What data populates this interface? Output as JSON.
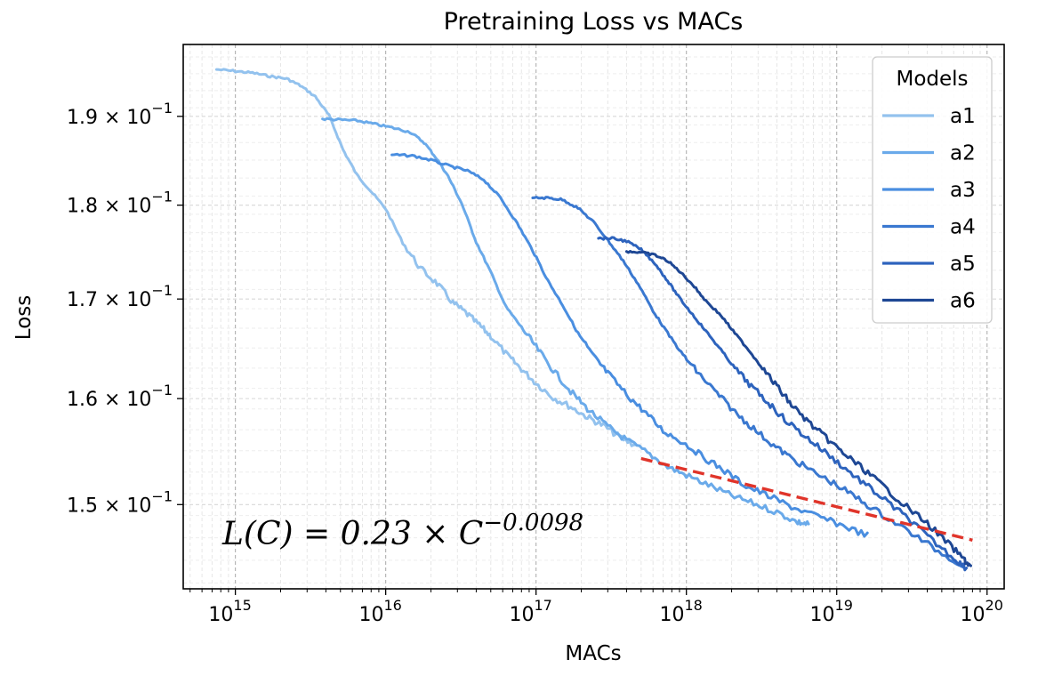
{
  "chart_data": {
    "type": "line",
    "title": "Pretraining Loss vs MACs",
    "xlabel": "MACs",
    "ylabel": "Loss",
    "x_scale": "log",
    "y_scale": "log",
    "xlim": [
      450000000000000.0,
      1.3e+20
    ],
    "ylim": [
      0.1425,
      0.1985
    ],
    "x_ticks": [
      {
        "value": 1000000000000000.0,
        "base": "10",
        "exp": "15"
      },
      {
        "value": 1e+16,
        "base": "10",
        "exp": "16"
      },
      {
        "value": 1e+17,
        "base": "10",
        "exp": "17"
      },
      {
        "value": 1e+18,
        "base": "10",
        "exp": "18"
      },
      {
        "value": 1e+19,
        "base": "10",
        "exp": "19"
      },
      {
        "value": 1e+20,
        "base": "10",
        "exp": "20"
      }
    ],
    "y_ticks": [
      {
        "value": 0.15,
        "label": "1.5 × 10",
        "exp": "−1"
      },
      {
        "value": 0.16,
        "label": "1.6 × 10",
        "exp": "−1"
      },
      {
        "value": 0.17,
        "label": "1.7 × 10",
        "exp": "−1"
      },
      {
        "value": 0.18,
        "label": "1.8 × 10",
        "exp": "−1"
      },
      {
        "value": 0.19,
        "label": "1.9 × 10",
        "exp": "−1"
      }
    ],
    "grid": true,
    "legend": {
      "title": "Models",
      "placement": "top-right"
    },
    "series": [
      {
        "name": "a1",
        "color": "#93c2ee",
        "points": [
          [
            750000000000000.0,
            0.1955
          ],
          [
            1000000000000000.0,
            0.1953
          ],
          [
            1300000000000000.0,
            0.1951
          ],
          [
            1700000000000000.0,
            0.1947
          ],
          [
            2200000000000000.0,
            0.1944
          ],
          [
            2700000000000000.0,
            0.1936
          ],
          [
            3400000000000000.0,
            0.1923
          ],
          [
            4200000000000000.0,
            0.1901
          ],
          [
            5200000000000000.0,
            0.1862
          ],
          [
            6400000000000000.0,
            0.1834
          ],
          [
            8000000000000000.0,
            0.1815
          ],
          [
            1e+16,
            0.1796
          ],
          [
            1.3e+16,
            0.1759
          ],
          [
            1.7e+16,
            0.1732
          ],
          [
            2.2e+16,
            0.1716
          ],
          [
            2.8e+16,
            0.1696
          ],
          [
            3.4e+16,
            0.1686
          ],
          [
            4.2e+16,
            0.1673
          ],
          [
            5e+16,
            0.1662
          ],
          [
            6.5e+16,
            0.1642
          ],
          [
            8e+16,
            0.1629
          ],
          [
            1e+17,
            0.1615
          ],
          [
            1.3e+17,
            0.1601
          ],
          [
            1.7e+17,
            0.1592
          ],
          [
            2.2e+17,
            0.1582
          ],
          [
            2.8e+17,
            0.1574
          ],
          [
            3.6e+17,
            0.1563
          ],
          [
            4.6e+17,
            0.1555
          ]
        ]
      },
      {
        "name": "a2",
        "color": "#6aaaea",
        "points": [
          [
            3800000000000000.0,
            0.1897
          ],
          [
            5000000000000000.0,
            0.1896
          ],
          [
            6500000000000000.0,
            0.1895
          ],
          [
            8500000000000000.0,
            0.1891
          ],
          [
            1.1e+16,
            0.1887
          ],
          [
            1.45e+16,
            0.1882
          ],
          [
            1.8e+16,
            0.187
          ],
          [
            2.2e+16,
            0.1851
          ],
          [
            2.6e+16,
            0.1832
          ],
          [
            3.2e+16,
            0.1802
          ],
          [
            4e+16,
            0.176
          ],
          [
            5e+16,
            0.1728
          ],
          [
            6.3e+16,
            0.1692
          ],
          [
            8e+16,
            0.1671
          ],
          [
            1e+17,
            0.1651
          ],
          [
            1.3e+17,
            0.1628
          ],
          [
            1.7e+17,
            0.1607
          ],
          [
            2.2e+17,
            0.159
          ],
          [
            3e+17,
            0.1573
          ],
          [
            4e+17,
            0.156
          ],
          [
            5.5e+17,
            0.1548
          ],
          [
            7.5e+17,
            0.1535
          ],
          [
            1e+18,
            0.1527
          ],
          [
            1.4e+18,
            0.1518
          ],
          [
            2e+18,
            0.1508
          ],
          [
            2.8e+18,
            0.1501
          ],
          [
            4e+18,
            0.1493
          ],
          [
            5.5e+18,
            0.1484
          ],
          [
            6.5e+18,
            0.1482
          ]
        ]
      },
      {
        "name": "a3",
        "color": "#4a8ee0",
        "points": [
          [
            1.1e+16,
            0.1856
          ],
          [
            1.5e+16,
            0.1855
          ],
          [
            2e+16,
            0.185
          ],
          [
            2.7e+16,
            0.1843
          ],
          [
            3.5e+16,
            0.1838
          ],
          [
            4.5e+16,
            0.1828
          ],
          [
            5.8e+16,
            0.1808
          ],
          [
            7.5e+16,
            0.178
          ],
          [
            9.5e+16,
            0.1751
          ],
          [
            1.2e+17,
            0.1719
          ],
          [
            1.5e+17,
            0.1694
          ],
          [
            1.9e+17,
            0.1665
          ],
          [
            2.4e+17,
            0.1642
          ],
          [
            3e+17,
            0.1625
          ],
          [
            4e+17,
            0.1604
          ],
          [
            5.2e+17,
            0.1588
          ],
          [
            7e+17,
            0.1569
          ],
          [
            9.5e+17,
            0.1558
          ],
          [
            1.3e+18,
            0.1544
          ],
          [
            1.8e+18,
            0.1531
          ],
          [
            2.5e+18,
            0.1517
          ],
          [
            3.5e+18,
            0.1508
          ],
          [
            5e+18,
            0.1498
          ],
          [
            7.5e+18,
            0.1489
          ],
          [
            1.1e+19,
            0.1481
          ],
          [
            1.6e+19,
            0.1472
          ]
        ]
      },
      {
        "name": "a4",
        "color": "#3a78d0",
        "points": [
          [
            9.5e+16,
            0.1808
          ],
          [
            1.2e+17,
            0.1808
          ],
          [
            1.5e+17,
            0.1806
          ],
          [
            1.9e+17,
            0.1797
          ],
          [
            2.4e+17,
            0.1782
          ],
          [
            3e+17,
            0.1762
          ],
          [
            3.8e+17,
            0.174
          ],
          [
            4.8e+17,
            0.1715
          ],
          [
            6e+17,
            0.1688
          ],
          [
            7.5e+17,
            0.1665
          ],
          [
            9.5e+17,
            0.1643
          ],
          [
            1.2e+18,
            0.1625
          ],
          [
            1.6e+18,
            0.1605
          ],
          [
            2.1e+18,
            0.1587
          ],
          [
            2.8e+18,
            0.1571
          ],
          [
            3.8e+18,
            0.1555
          ],
          [
            5e+18,
            0.1543
          ],
          [
            7e+18,
            0.153
          ],
          [
            1e+19,
            0.1518
          ],
          [
            1.4e+19,
            0.1505
          ],
          [
            2e+19,
            0.1491
          ],
          [
            3e+19,
            0.1476
          ],
          [
            4.5e+19,
            0.146
          ],
          [
            7e+19,
            0.1445
          ]
        ]
      },
      {
        "name": "a5",
        "color": "#2d63bd",
        "points": [
          [
            2.6e+17,
            0.1764
          ],
          [
            3.2e+17,
            0.1764
          ],
          [
            4e+17,
            0.1761
          ],
          [
            5e+17,
            0.1752
          ],
          [
            6.2e+17,
            0.1737
          ],
          [
            7.5e+17,
            0.1719
          ],
          [
            9e+17,
            0.1701
          ],
          [
            1.1e+18,
            0.1684
          ],
          [
            1.35e+18,
            0.1667
          ],
          [
            1.7e+18,
            0.1648
          ],
          [
            2.1e+18,
            0.163
          ],
          [
            2.7e+18,
            0.1612
          ],
          [
            3.5e+18,
            0.1596
          ],
          [
            4.5e+18,
            0.158
          ],
          [
            6e+18,
            0.1565
          ],
          [
            8e+18,
            0.1551
          ],
          [
            1.1e+19,
            0.1535
          ],
          [
            1.5e+19,
            0.152
          ],
          [
            2.1e+19,
            0.1504
          ],
          [
            3e+19,
            0.1487
          ],
          [
            4.2e+19,
            0.1469
          ],
          [
            6e+19,
            0.1452
          ],
          [
            7.3e+19,
            0.1443
          ]
        ]
      },
      {
        "name": "a6",
        "color": "#1e4794",
        "points": [
          [
            4e+17,
            0.175
          ],
          [
            5e+17,
            0.1749
          ],
          [
            6.2e+17,
            0.1746
          ],
          [
            7.5e+17,
            0.174
          ],
          [
            9e+17,
            0.1729
          ],
          [
            1.1e+18,
            0.1715
          ],
          [
            1.35e+18,
            0.1698
          ],
          [
            1.7e+18,
            0.1683
          ],
          [
            2.1e+18,
            0.1665
          ],
          [
            2.6e+18,
            0.1648
          ],
          [
            3.2e+18,
            0.163
          ],
          [
            4e+18,
            0.1612
          ],
          [
            5e+18,
            0.1594
          ],
          [
            6.5e+18,
            0.1577
          ],
          [
            8.5e+18,
            0.1562
          ],
          [
            1.1e+19,
            0.1548
          ],
          [
            1.5e+19,
            0.1533
          ],
          [
            2e+19,
            0.1518
          ],
          [
            2.8e+19,
            0.15
          ],
          [
            4e+19,
            0.1483
          ],
          [
            5.5e+19,
            0.1465
          ],
          [
            7e+19,
            0.1451
          ],
          [
            7.8e+19,
            0.1444
          ]
        ]
      }
    ],
    "fit_line": {
      "label": "L(C) = 0.23 × C^−0.0098",
      "coefficient": 0.23,
      "exponent": -0.0098,
      "x_range": [
        5e+17,
        8e+19
      ],
      "color": "#e0342a",
      "style": "dashed"
    },
    "annotations": [
      {
        "text_main": "L(C) = 0.23 × C",
        "text_exp": "−0.0098"
      }
    ]
  }
}
